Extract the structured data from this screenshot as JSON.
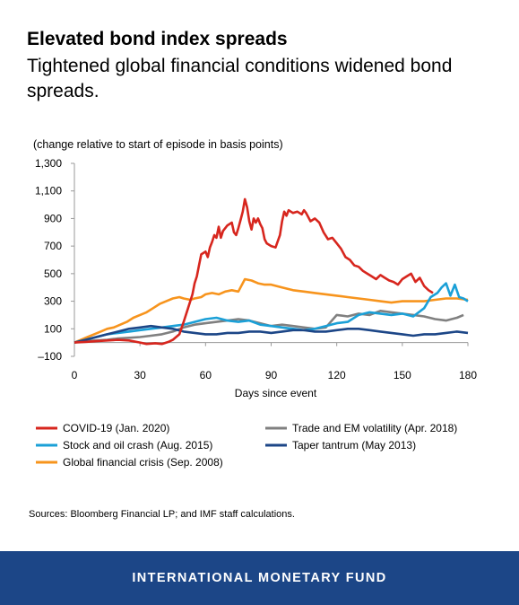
{
  "header": {
    "title": "Elevated bond index spreads",
    "subtitle": "Tightened global financial conditions widened bond spreads."
  },
  "chart_data": {
    "type": "line",
    "title": "",
    "unit_label": "(change relative to start of episode in basis points)",
    "xlabel": "Days since event",
    "ylabel": "",
    "xlim": [
      0,
      180
    ],
    "ylim": [
      -100,
      1300
    ],
    "x_ticks": [
      0,
      30,
      60,
      90,
      120,
      150,
      180
    ],
    "y_ticks": [
      -100,
      100,
      300,
      500,
      700,
      900,
      1100,
      1300
    ],
    "y_tick_labels": [
      "–100",
      "100",
      "300",
      "500",
      "700",
      "900",
      "1,100",
      "1,300"
    ],
    "grid": false,
    "legend_position": "bottom",
    "series": [
      {
        "name": "COVID-19 (Jan. 2020)",
        "color": "#d7261e",
        "x": [
          0,
          5,
          10,
          15,
          20,
          25,
          30,
          33,
          37,
          40,
          43,
          45,
          48,
          50,
          52,
          54,
          55,
          56,
          57,
          58,
          60,
          61,
          62,
          63,
          64,
          65,
          66,
          67,
          68,
          70,
          72,
          73,
          74,
          75,
          76,
          77,
          78,
          79,
          80,
          81,
          82,
          83,
          84,
          85,
          86,
          87,
          88,
          90,
          92,
          94,
          95,
          96,
          97,
          98,
          100,
          102,
          104,
          105,
          106,
          108,
          110,
          112,
          114,
          116,
          118,
          120,
          122,
          124,
          126,
          128,
          130,
          132,
          134,
          136,
          138,
          140,
          142,
          144,
          146,
          148,
          150,
          152,
          154,
          156,
          158,
          160,
          162,
          164
        ],
        "values": [
          0,
          5,
          10,
          15,
          20,
          15,
          0,
          -10,
          -5,
          -10,
          5,
          20,
          60,
          150,
          250,
          350,
          430,
          480,
          560,
          640,
          660,
          620,
          690,
          730,
          780,
          760,
          840,
          760,
          810,
          850,
          870,
          800,
          780,
          830,
          890,
          950,
          1040,
          980,
          880,
          820,
          900,
          870,
          900,
          860,
          830,
          750,
          720,
          700,
          690,
          780,
          880,
          950,
          920,
          960,
          940,
          950,
          930,
          960,
          940,
          880,
          900,
          870,
          800,
          750,
          760,
          720,
          680,
          620,
          600,
          560,
          550,
          520,
          500,
          480,
          460,
          490,
          470,
          450,
          440,
          420,
          460,
          480,
          500,
          440,
          470,
          410,
          380,
          360
        ]
      },
      {
        "name": "Trade and EM volatility (Apr. 2018)",
        "color": "#808080",
        "x": [
          0,
          5,
          10,
          15,
          20,
          25,
          30,
          35,
          40,
          45,
          50,
          55,
          60,
          65,
          70,
          75,
          80,
          85,
          90,
          95,
          100,
          105,
          110,
          115,
          120,
          125,
          130,
          135,
          140,
          145,
          150,
          155,
          160,
          165,
          170,
          175,
          178
        ],
        "values": [
          0,
          10,
          15,
          20,
          30,
          35,
          40,
          50,
          60,
          80,
          110,
          130,
          140,
          150,
          160,
          170,
          160,
          140,
          120,
          130,
          120,
          110,
          100,
          110,
          200,
          190,
          210,
          200,
          230,
          220,
          210,
          200,
          190,
          170,
          160,
          180,
          200
        ]
      },
      {
        "name": "Stock and oil crash (Aug. 2015)",
        "color": "#1ba0d7",
        "x": [
          0,
          5,
          10,
          15,
          20,
          25,
          30,
          35,
          40,
          45,
          50,
          55,
          60,
          65,
          70,
          75,
          80,
          85,
          90,
          95,
          100,
          105,
          110,
          115,
          120,
          125,
          130,
          135,
          140,
          145,
          150,
          155,
          160,
          163,
          166,
          168,
          170,
          172,
          174,
          176,
          178,
          180
        ],
        "values": [
          0,
          20,
          40,
          60,
          70,
          80,
          90,
          100,
          110,
          120,
          130,
          150,
          170,
          180,
          160,
          150,
          160,
          130,
          120,
          110,
          100,
          90,
          100,
          120,
          140,
          150,
          200,
          220,
          210,
          200,
          210,
          190,
          250,
          330,
          360,
          400,
          430,
          340,
          420,
          330,
          320,
          300
        ]
      },
      {
        "name": "Taper tantrum (May 2013)",
        "color": "#1c4687",
        "x": [
          0,
          5,
          10,
          15,
          20,
          25,
          30,
          35,
          40,
          45,
          50,
          55,
          60,
          65,
          70,
          75,
          80,
          85,
          90,
          95,
          100,
          105,
          110,
          115,
          120,
          125,
          130,
          135,
          140,
          145,
          150,
          155,
          160,
          165,
          170,
          175,
          180
        ],
        "values": [
          0,
          20,
          40,
          60,
          80,
          100,
          110,
          120,
          110,
          100,
          80,
          70,
          60,
          60,
          70,
          70,
          80,
          80,
          70,
          80,
          90,
          90,
          80,
          80,
          90,
          100,
          100,
          90,
          80,
          70,
          60,
          50,
          60,
          60,
          70,
          80,
          70
        ]
      },
      {
        "name": "Global financial crisis (Sep. 2008)",
        "color": "#f7941d",
        "x": [
          0,
          3,
          6,
          9,
          12,
          15,
          18,
          21,
          24,
          27,
          30,
          33,
          36,
          39,
          42,
          45,
          48,
          50,
          53,
          55,
          58,
          60,
          63,
          66,
          69,
          72,
          75,
          78,
          81,
          84,
          87,
          90,
          95,
          100,
          105,
          110,
          115,
          120,
          125,
          130,
          135,
          140,
          145,
          150,
          155,
          160,
          165,
          170,
          175,
          180
        ],
        "values": [
          0,
          20,
          40,
          60,
          80,
          100,
          110,
          130,
          150,
          180,
          200,
          220,
          250,
          280,
          300,
          320,
          330,
          320,
          310,
          320,
          330,
          350,
          360,
          350,
          370,
          380,
          370,
          460,
          450,
          430,
          420,
          420,
          400,
          380,
          370,
          360,
          350,
          340,
          330,
          320,
          310,
          300,
          290,
          300,
          300,
          300,
          310,
          320,
          320,
          310
        ]
      }
    ]
  },
  "source": "Sources: Bloomberg Financial LP; and IMF staff calculations.",
  "footer": {
    "org": "INTERNATIONAL MONETARY FUND",
    "color": "#1c4687"
  }
}
